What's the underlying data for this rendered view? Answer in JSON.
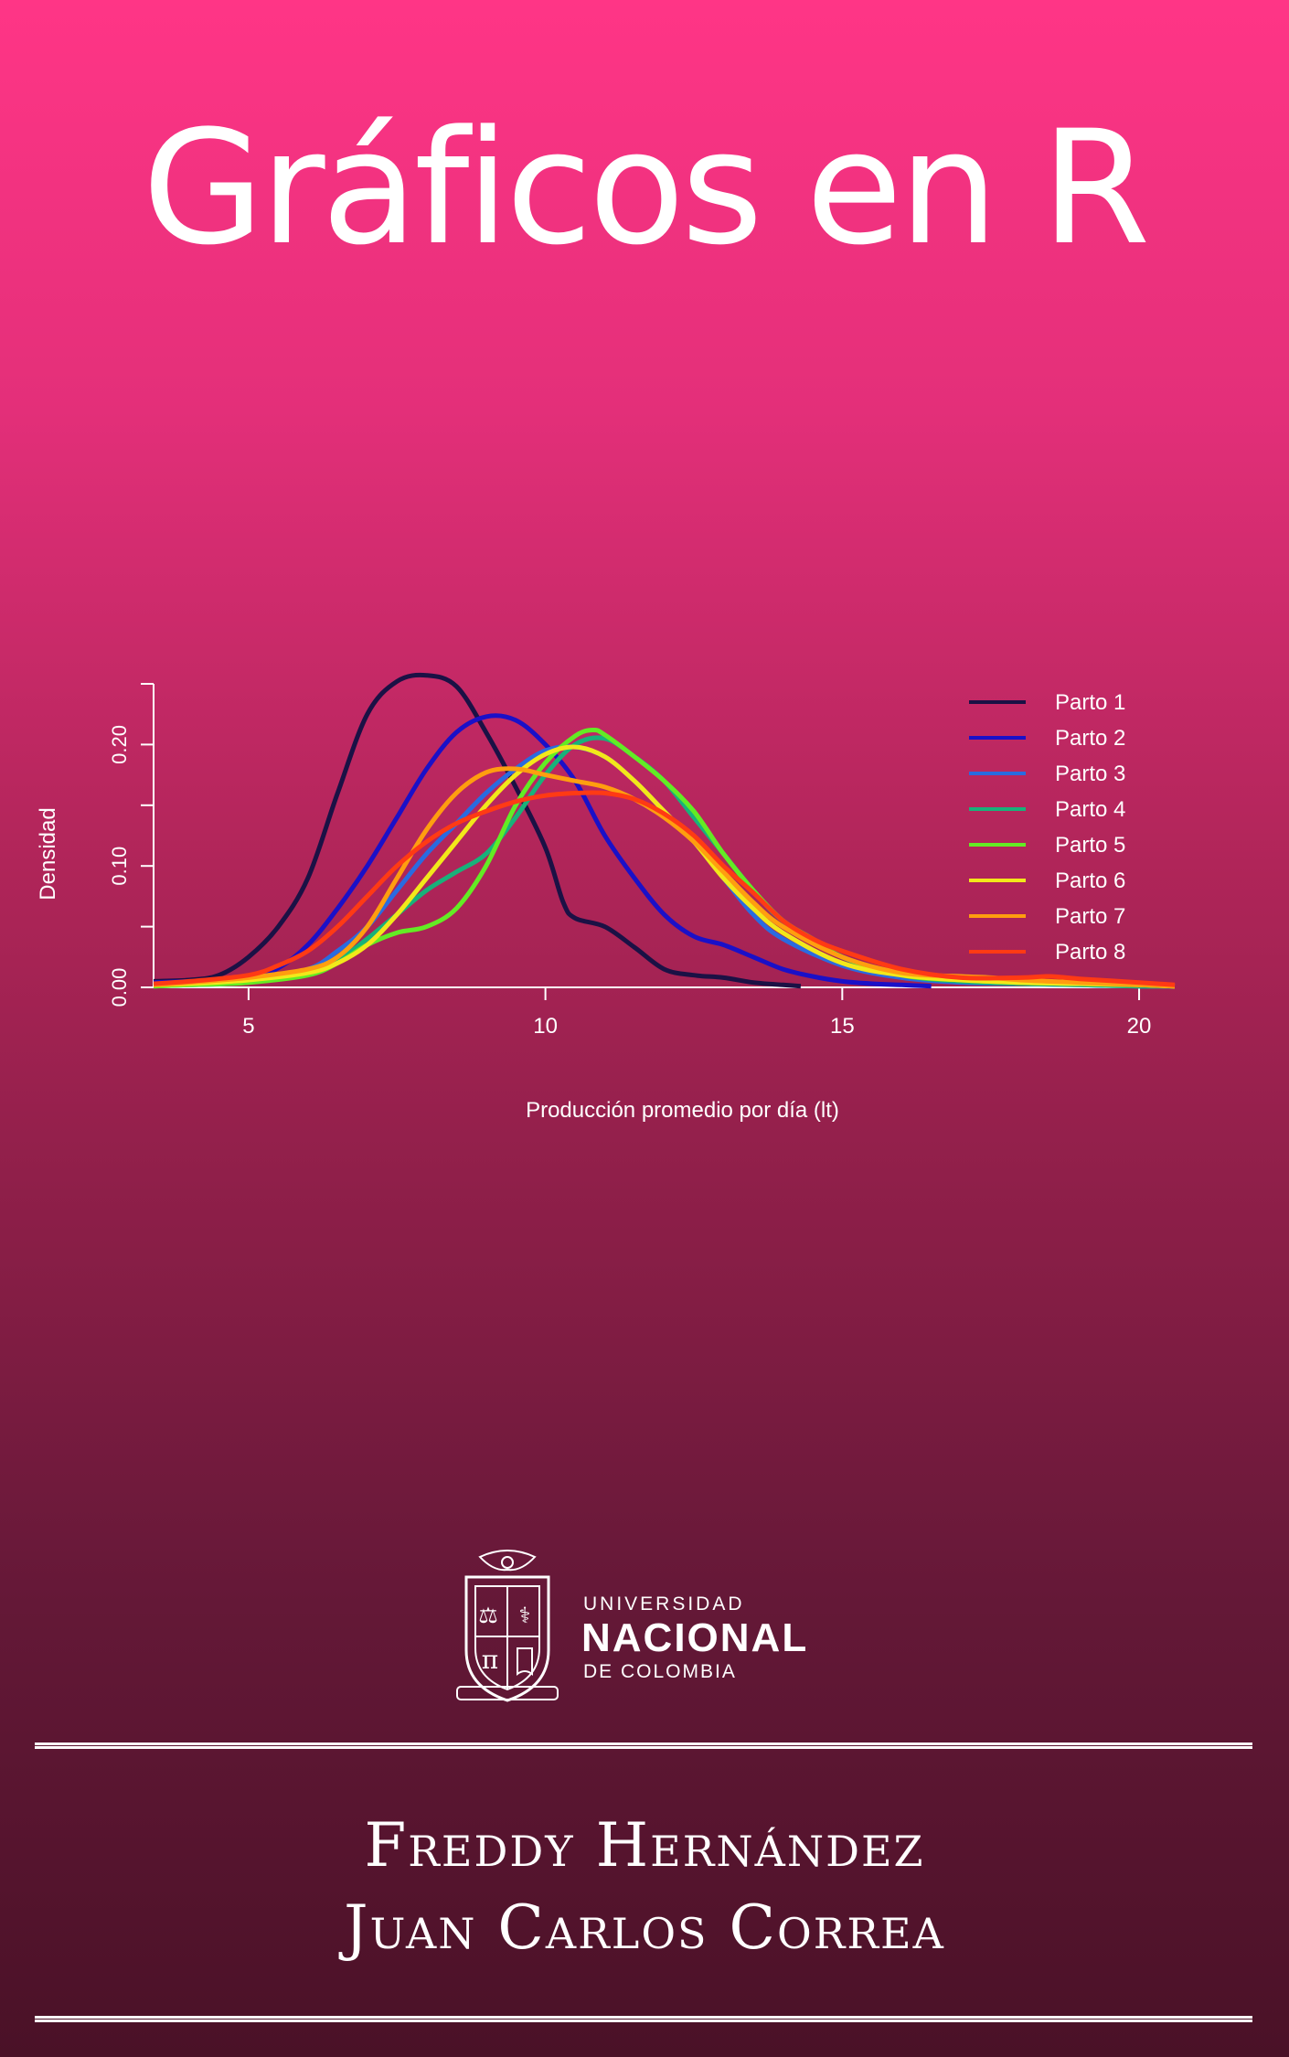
{
  "cover": {
    "title": "Gráficos en R",
    "author1": "Freddy Hernández",
    "author2": "Juan Carlos Correa",
    "university": {
      "line1": "UNIVERSIDAD",
      "line2": "NACIONAL",
      "line3": "DE COLOMBIA"
    },
    "background_top": "#ff3586",
    "background_bottom": "#4a1127",
    "text_color": "#ffffff"
  },
  "chart_data": {
    "type": "line",
    "title": "",
    "xlabel": "Producción promedio por día (lt)",
    "ylabel": "Densidad",
    "xlim": [
      3.4,
      20.6
    ],
    "ylim": [
      0,
      0.25
    ],
    "xticks": [
      "5",
      "10",
      "15",
      "20"
    ],
    "xtick_values": [
      5,
      10,
      15,
      20
    ],
    "yticks": [
      "0.00",
      "0.10",
      "0.20"
    ],
    "ytick_values": [
      0,
      0.1,
      0.2
    ],
    "grid": false,
    "legend_position": "top-right",
    "series": [
      {
        "name": "Parto  1",
        "color": "#1b1145",
        "x": [
          3.4,
          4,
          4.5,
          5,
          5.5,
          6,
          6.5,
          7,
          7.5,
          8,
          8.5,
          9,
          9.5,
          10,
          10.3,
          10.5,
          11,
          11.5,
          12,
          12.5,
          13,
          13.5,
          14,
          14.3
        ],
        "y": [
          0.005,
          0.006,
          0.01,
          0.025,
          0.05,
          0.09,
          0.16,
          0.225,
          0.252,
          0.257,
          0.248,
          0.21,
          0.165,
          0.115,
          0.07,
          0.057,
          0.05,
          0.033,
          0.015,
          0.01,
          0.008,
          0.004,
          0.002,
          0.001
        ]
      },
      {
        "name": "Parto  2",
        "color": "#1a10c8",
        "x": [
          3.4,
          4,
          5,
          5.5,
          6,
          6.5,
          7,
          7.5,
          8,
          8.5,
          9,
          9.5,
          10,
          10.5,
          11,
          11.5,
          12,
          12.5,
          13,
          13.5,
          14,
          14.5,
          15,
          15.5,
          16,
          16.5
        ],
        "y": [
          0.004,
          0.005,
          0.008,
          0.016,
          0.035,
          0.065,
          0.1,
          0.14,
          0.18,
          0.21,
          0.223,
          0.22,
          0.2,
          0.17,
          0.125,
          0.09,
          0.06,
          0.042,
          0.035,
          0.025,
          0.015,
          0.009,
          0.005,
          0.003,
          0.002,
          0.001
        ]
      },
      {
        "name": "Parto  3",
        "color": "#2a6be0",
        "x": [
          3.4,
          4,
          5,
          6,
          6.5,
          7,
          7.5,
          8,
          8.5,
          9,
          9.5,
          10,
          10.5,
          11,
          11.5,
          12,
          12.5,
          13,
          13.5,
          14,
          15,
          16,
          17,
          18,
          19,
          20,
          20.6
        ],
        "y": [
          0.002,
          0.003,
          0.005,
          0.015,
          0.03,
          0.05,
          0.08,
          0.11,
          0.135,
          0.16,
          0.18,
          0.195,
          0.198,
          0.19,
          0.17,
          0.145,
          0.12,
          0.09,
          0.06,
          0.04,
          0.018,
          0.008,
          0.004,
          0.003,
          0.002,
          0.001,
          0.001
        ]
      },
      {
        "name": "Parto  4",
        "color": "#18b27a",
        "x": [
          3.4,
          4,
          5,
          6,
          6.5,
          7,
          7.5,
          8,
          8.5,
          9,
          9.5,
          10,
          10.5,
          11,
          11.5,
          12,
          12.5,
          13,
          13.5,
          14,
          15,
          16,
          17,
          18,
          19,
          20,
          20.6
        ],
        "y": [
          0.001,
          0.002,
          0.004,
          0.012,
          0.022,
          0.04,
          0.06,
          0.08,
          0.095,
          0.11,
          0.14,
          0.175,
          0.2,
          0.205,
          0.19,
          0.17,
          0.14,
          0.11,
          0.08,
          0.055,
          0.025,
          0.01,
          0.005,
          0.003,
          0.002,
          0.001,
          0.001
        ]
      },
      {
        "name": "Parto  5",
        "color": "#63ec24",
        "x": [
          3.4,
          4,
          5,
          6,
          6.5,
          7,
          7.5,
          8,
          8.5,
          9,
          9.5,
          10,
          10.5,
          10.8,
          11,
          11.5,
          12,
          12.5,
          13,
          13.5,
          14,
          14.5,
          15,
          16,
          17,
          18,
          19,
          20,
          20.6
        ],
        "y": [
          0.001,
          0.002,
          0.004,
          0.01,
          0.02,
          0.035,
          0.045,
          0.05,
          0.065,
          0.1,
          0.15,
          0.185,
          0.207,
          0.212,
          0.208,
          0.19,
          0.17,
          0.145,
          0.11,
          0.08,
          0.055,
          0.04,
          0.025,
          0.01,
          0.006,
          0.004,
          0.003,
          0.002,
          0.001
        ]
      },
      {
        "name": "Parto  6",
        "color": "#f2e81a",
        "x": [
          3.4,
          4,
          5,
          6,
          6.5,
          7,
          7.5,
          8,
          8.5,
          9,
          9.5,
          10,
          10.5,
          11,
          11.5,
          12,
          12.5,
          13,
          13.5,
          14,
          15,
          16,
          17,
          18,
          19,
          20,
          20.6
        ],
        "y": [
          0.002,
          0.003,
          0.006,
          0.012,
          0.02,
          0.035,
          0.06,
          0.09,
          0.12,
          0.15,
          0.175,
          0.192,
          0.198,
          0.19,
          0.17,
          0.145,
          0.12,
          0.09,
          0.065,
          0.045,
          0.02,
          0.01,
          0.006,
          0.004,
          0.003,
          0.002,
          0.001
        ]
      },
      {
        "name": "Parto  7",
        "color": "#ff9e0f",
        "x": [
          3.4,
          4,
          5,
          6,
          6.5,
          7,
          7.5,
          8,
          8.5,
          9,
          9.5,
          10,
          10.5,
          11,
          11.5,
          12,
          12.5,
          13,
          13.5,
          14,
          15,
          16,
          17,
          17.5,
          18,
          19,
          20,
          20.6
        ],
        "y": [
          0.002,
          0.004,
          0.008,
          0.015,
          0.025,
          0.05,
          0.09,
          0.13,
          0.16,
          0.177,
          0.18,
          0.175,
          0.17,
          0.165,
          0.155,
          0.14,
          0.12,
          0.095,
          0.07,
          0.05,
          0.025,
          0.012,
          0.009,
          0.008,
          0.006,
          0.004,
          0.002,
          0.001
        ]
      },
      {
        "name": "Parto  8",
        "color": "#ff3a14",
        "x": [
          3.4,
          4,
          5,
          5.5,
          6,
          6.5,
          7,
          7.5,
          8,
          8.5,
          9,
          9.5,
          10,
          10.5,
          11,
          11.5,
          12,
          12.5,
          13,
          13.5,
          14,
          14.5,
          15,
          16,
          17,
          18,
          18.5,
          19,
          20,
          20.6
        ],
        "y": [
          0.003,
          0.005,
          0.01,
          0.018,
          0.03,
          0.05,
          0.075,
          0.1,
          0.12,
          0.135,
          0.145,
          0.153,
          0.158,
          0.16,
          0.16,
          0.155,
          0.143,
          0.125,
          0.1,
          0.078,
          0.055,
          0.04,
          0.03,
          0.015,
          0.008,
          0.008,
          0.009,
          0.007,
          0.004,
          0.002
        ]
      }
    ]
  }
}
